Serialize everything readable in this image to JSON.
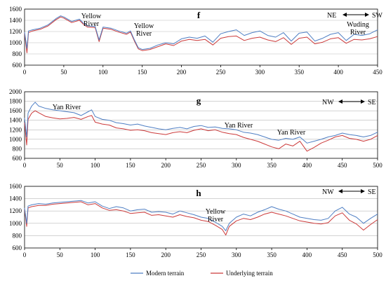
{
  "colors": {
    "modern": "#4f7fc4",
    "underlying": "#cc3a3a",
    "axis": "#000000",
    "grid": "#b9b9b9"
  },
  "legend": {
    "modern": "Modern terrain",
    "underlying": "Underlying terrain"
  },
  "chart_data": [
    {
      "type": "line",
      "panel": "f",
      "xlim": [
        0,
        450
      ],
      "ylim": [
        600,
        1600
      ],
      "xticks": [
        0,
        50,
        100,
        150,
        200,
        250,
        300,
        350,
        400,
        450
      ],
      "yticks": [
        600,
        800,
        1000,
        1200,
        1400,
        1600
      ],
      "grid": true,
      "direction": {
        "left": "NE",
        "right": "SW"
      },
      "annotations": [
        "Yellow River",
        "Yellow River",
        "Wuding River"
      ],
      "series": [
        {
          "name": "Modern terrain",
          "x": [
            0,
            3,
            5,
            10,
            20,
            30,
            40,
            46,
            50,
            60,
            70,
            75,
            80,
            90,
            95,
            100,
            110,
            120,
            130,
            135,
            140,
            145,
            150,
            160,
            170,
            180,
            190,
            200,
            210,
            220,
            230,
            240,
            250,
            260,
            270,
            280,
            290,
            300,
            310,
            320,
            330,
            340,
            350,
            360,
            370,
            380,
            390,
            400,
            410,
            420,
            430,
            440,
            450
          ],
          "values": [
            1190,
            900,
            1210,
            1230,
            1260,
            1320,
            1430,
            1480,
            1460,
            1380,
            1420,
            1350,
            1300,
            1290,
            1050,
            1280,
            1260,
            1210,
            1170,
            1210,
            1050,
            910,
            880,
            900,
            960,
            1000,
            980,
            1070,
            1100,
            1080,
            1120,
            1010,
            1160,
            1200,
            1230,
            1130,
            1180,
            1210,
            1130,
            1100,
            1180,
            1030,
            1170,
            1190,
            1030,
            1080,
            1150,
            1180,
            1040,
            1150,
            1130,
            1160,
            1230
          ]
        },
        {
          "name": "Underlying terrain",
          "x": [
            0,
            3,
            5,
            10,
            20,
            30,
            40,
            46,
            50,
            60,
            70,
            75,
            80,
            90,
            95,
            100,
            110,
            120,
            130,
            135,
            140,
            145,
            150,
            160,
            170,
            180,
            190,
            200,
            210,
            220,
            230,
            240,
            250,
            260,
            270,
            280,
            290,
            300,
            310,
            320,
            330,
            340,
            350,
            360,
            370,
            380,
            390,
            400,
            410,
            420,
            430,
            440,
            450
          ],
          "values": [
            1170,
            820,
            1180,
            1210,
            1240,
            1300,
            1410,
            1460,
            1440,
            1360,
            1400,
            1330,
            1280,
            1270,
            1020,
            1260,
            1240,
            1190,
            1150,
            1190,
            1030,
            890,
            860,
            880,
            930,
            980,
            950,
            1030,
            1060,
            1040,
            1060,
            960,
            1080,
            1110,
            1120,
            1040,
            1080,
            1100,
            1050,
            1020,
            1090,
            970,
            1080,
            1100,
            980,
            1010,
            1070,
            1090,
            990,
            1060,
            1050,
            1070,
            1110
          ]
        }
      ]
    },
    {
      "type": "line",
      "panel": "g",
      "xlim": [
        0,
        500
      ],
      "ylim": [
        600,
        2000
      ],
      "xticks": [
        0,
        50,
        100,
        150,
        200,
        250,
        300,
        350,
        400,
        450,
        500
      ],
      "yticks": [
        600,
        800,
        1000,
        1200,
        1400,
        1600,
        1800,
        2000
      ],
      "grid": true,
      "direction": {
        "left": "NW",
        "right": "SE"
      },
      "annotations": [
        "Yan River",
        "Yan River",
        "Yan River"
      ],
      "series": [
        {
          "name": "Modern terrain",
          "x": [
            0,
            3,
            5,
            10,
            15,
            20,
            30,
            40,
            50,
            60,
            70,
            80,
            90,
            95,
            100,
            110,
            120,
            130,
            140,
            150,
            160,
            170,
            180,
            190,
            200,
            210,
            220,
            230,
            240,
            250,
            260,
            270,
            280,
            290,
            300,
            310,
            320,
            330,
            340,
            350,
            360,
            370,
            380,
            390,
            400,
            410,
            420,
            430,
            440,
            450,
            460,
            470,
            480,
            490,
            500
          ],
          "values": [
            1450,
            1050,
            1550,
            1700,
            1780,
            1700,
            1650,
            1620,
            1600,
            1580,
            1560,
            1500,
            1580,
            1620,
            1480,
            1420,
            1400,
            1350,
            1330,
            1300,
            1320,
            1280,
            1250,
            1220,
            1200,
            1230,
            1250,
            1220,
            1270,
            1290,
            1250,
            1260,
            1230,
            1220,
            1200,
            1150,
            1130,
            1100,
            1050,
            1000,
            980,
            1020,
            1000,
            1050,
            920,
            960,
            1000,
            1050,
            1080,
            1130,
            1100,
            1080,
            1050,
            1080,
            1150
          ]
        },
        {
          "name": "Underlying terrain",
          "x": [
            0,
            3,
            5,
            10,
            15,
            20,
            30,
            40,
            50,
            60,
            70,
            80,
            90,
            95,
            100,
            110,
            120,
            130,
            140,
            150,
            160,
            170,
            180,
            190,
            200,
            210,
            220,
            230,
            240,
            250,
            260,
            270,
            280,
            290,
            300,
            310,
            320,
            330,
            340,
            350,
            360,
            370,
            380,
            390,
            400,
            410,
            420,
            430,
            440,
            450,
            460,
            470,
            480,
            490,
            500
          ],
          "values": [
            1350,
            880,
            1420,
            1550,
            1600,
            1560,
            1480,
            1450,
            1430,
            1440,
            1460,
            1420,
            1480,
            1500,
            1360,
            1320,
            1300,
            1240,
            1220,
            1190,
            1200,
            1180,
            1140,
            1120,
            1100,
            1140,
            1160,
            1140,
            1190,
            1220,
            1180,
            1200,
            1150,
            1120,
            1100,
            1040,
            1000,
            960,
            900,
            840,
            800,
            900,
            860,
            960,
            750,
            830,
            920,
            980,
            1050,
            1080,
            1020,
            1000,
            960,
            1000,
            1080
          ]
        }
      ]
    },
    {
      "type": "line",
      "panel": "h",
      "xlim": [
        0,
        500
      ],
      "ylim": [
        600,
        1600
      ],
      "xticks": [
        0,
        50,
        100,
        150,
        200,
        250,
        300,
        350,
        400,
        450,
        500
      ],
      "yticks": [
        600,
        800,
        1000,
        1200,
        1400,
        1600
      ],
      "grid": true,
      "direction": {
        "left": "NW",
        "right": "SE"
      },
      "annotations": [
        "Yellow River"
      ],
      "series": [
        {
          "name": "Modern terrain",
          "x": [
            0,
            3,
            5,
            10,
            20,
            30,
            40,
            50,
            60,
            70,
            80,
            90,
            100,
            110,
            120,
            130,
            140,
            150,
            160,
            170,
            180,
            190,
            200,
            210,
            220,
            230,
            240,
            250,
            260,
            270,
            280,
            285,
            290,
            300,
            310,
            320,
            330,
            340,
            350,
            360,
            370,
            380,
            390,
            400,
            410,
            420,
            430,
            440,
            450,
            460,
            470,
            480,
            490,
            500
          ],
          "values": [
            1250,
            1000,
            1280,
            1300,
            1320,
            1310,
            1330,
            1340,
            1350,
            1360,
            1370,
            1330,
            1350,
            1280,
            1240,
            1270,
            1250,
            1200,
            1220,
            1230,
            1180,
            1190,
            1180,
            1150,
            1200,
            1170,
            1140,
            1100,
            1080,
            1020,
            950,
            880,
            1000,
            1100,
            1150,
            1120,
            1180,
            1220,
            1270,
            1230,
            1200,
            1150,
            1100,
            1080,
            1060,
            1050,
            1080,
            1200,
            1260,
            1150,
            1100,
            1000,
            1080,
            1150
          ]
        },
        {
          "name": "Underlying terrain",
          "x": [
            0,
            3,
            5,
            10,
            20,
            30,
            40,
            50,
            60,
            70,
            80,
            90,
            100,
            110,
            120,
            130,
            140,
            150,
            160,
            170,
            180,
            190,
            200,
            210,
            220,
            230,
            240,
            250,
            260,
            270,
            280,
            285,
            290,
            300,
            310,
            320,
            330,
            340,
            350,
            360,
            370,
            380,
            390,
            400,
            410,
            420,
            430,
            440,
            450,
            460,
            470,
            480,
            490,
            500
          ],
          "values": [
            1230,
            950,
            1250,
            1270,
            1290,
            1290,
            1310,
            1320,
            1330,
            1340,
            1350,
            1300,
            1320,
            1250,
            1210,
            1220,
            1200,
            1160,
            1170,
            1180,
            1130,
            1140,
            1120,
            1100,
            1140,
            1110,
            1090,
            1050,
            1030,
            970,
            900,
            810,
            950,
            1040,
            1080,
            1060,
            1100,
            1150,
            1180,
            1150,
            1120,
            1080,
            1040,
            1020,
            1000,
            990,
            1010,
            1120,
            1170,
            1050,
            990,
            890,
            980,
            1060
          ]
        }
      ]
    }
  ]
}
